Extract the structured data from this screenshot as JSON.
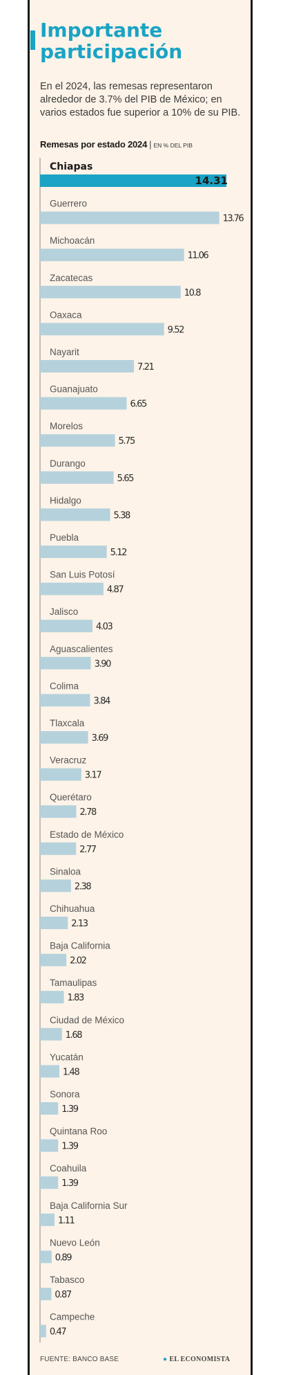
{
  "header": {
    "title": "Importante participación",
    "subtitle": "En el 2024, las remesas representaron alrededor de 3.7% del PIB de México; en varios estados fue superior a 10% de su PIB.",
    "chart_heading": "Remesas por estado 2024",
    "chart_unit": "EN % DEL PIB"
  },
  "footer": {
    "source": "FUENTE: BANCO BASE",
    "brand": "EL ECONOMISTA"
  },
  "colors": {
    "accent": "#1aa3c4",
    "bar": "#b5d2dc",
    "highlight_bar": "#1aa3c4",
    "panel": "#fdf3e8"
  },
  "chart_data": {
    "type": "bar",
    "orientation": "horizontal",
    "title": "Remesas por estado 2024",
    "unit": "EN % DEL PIB",
    "highlight": "Chiapas",
    "categories": [
      "Chiapas",
      "Guerrero",
      "Michoacán",
      "Zacatecas",
      "Oaxaca",
      "Nayarit",
      "Guanajuato",
      "Morelos",
      "Durango",
      "Hidalgo",
      "Puebla",
      "San Luis Potosí",
      "Jalisco",
      "Aguascalientes",
      "Colima",
      "Tlaxcala",
      "Veracruz",
      "Querétaro",
      "Estado de México",
      "Sinaloa",
      "Chihuahua",
      "Baja California",
      "Tamaulipas",
      "Ciudad de México",
      "Yucatán",
      "Sonora",
      "Quintana Roo",
      "Coahuila",
      "Baja California Sur",
      "Nuevo León",
      "Tabasco",
      "Campeche"
    ],
    "values": [
      14.31,
      13.76,
      11.06,
      10.8,
      9.52,
      7.21,
      6.65,
      5.75,
      5.65,
      5.38,
      5.12,
      4.87,
      4.03,
      3.9,
      3.84,
      3.69,
      3.17,
      2.78,
      2.77,
      2.38,
      2.13,
      2.02,
      1.83,
      1.68,
      1.48,
      1.39,
      1.39,
      1.39,
      1.11,
      0.89,
      0.87,
      0.47
    ],
    "value_labels": [
      "14.31",
      "13.76",
      "11.06",
      "10.8",
      "9.52",
      "7.21",
      "6.65",
      "5.75",
      "5.65",
      "5.38",
      "5.12",
      "4.87",
      "4.03",
      "3.90",
      "3.84",
      "3.69",
      "3.17",
      "2.78",
      "2.77",
      "2.38",
      "2.13",
      "2.02",
      "1.83",
      "1.68",
      "1.48",
      "1.39",
      "1.39",
      "1.39",
      "1.11",
      "0.89",
      "0.87",
      "0.47"
    ]
  }
}
